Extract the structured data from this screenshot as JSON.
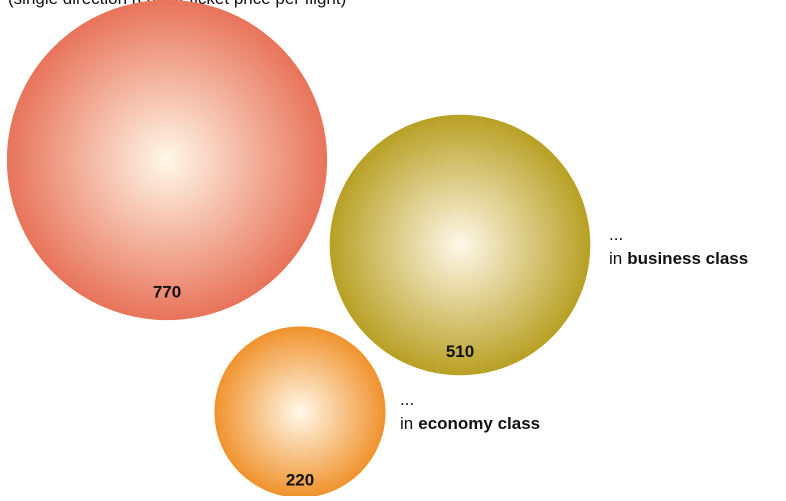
{
  "chart_data": {
    "type": "bubble",
    "subtitle": "(single direction regular ticket price per flight)",
    "values": [
      770,
      510,
      220
    ],
    "colors": [
      "#e8735a",
      "#b8a024",
      "#f0922c"
    ],
    "annotations": [
      {
        "ellipsis": "...",
        "prefix": "in",
        "emphasis": "business class"
      },
      {
        "ellipsis": "...",
        "prefix": "in",
        "emphasis": "economy class"
      }
    ]
  }
}
